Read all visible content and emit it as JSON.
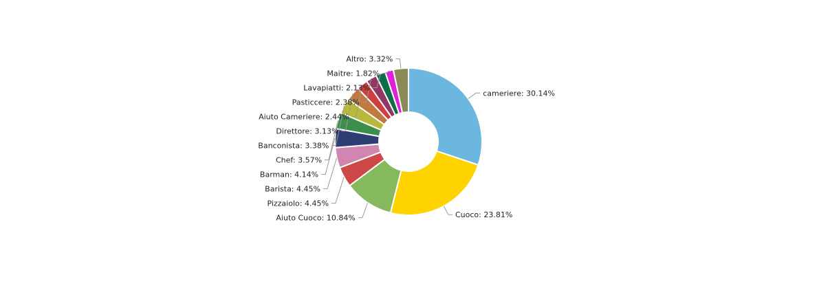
{
  "chart_data": {
    "type": "pie",
    "variant": "donut",
    "label_format": "{name}: {pct}%",
    "slices": [
      {
        "name": "cameriere",
        "value": 30.14,
        "pct_label": "30.14",
        "color": "#6bb7df"
      },
      {
        "name": "Cuoco",
        "value": 23.81,
        "pct_label": "23.81",
        "color": "#fed300"
      },
      {
        "name": "Aiuto Cuoco",
        "value": 10.84,
        "pct_label": "10.84",
        "color": "#86b85d"
      },
      {
        "name": "Pizzaiolo",
        "value": 4.45,
        "pct_label": "4.45",
        "color": "#cd4849"
      },
      {
        "name": "Barista",
        "value": 4.45,
        "pct_label": "4.45",
        "color": "#d186b1"
      },
      {
        "name": "Barman",
        "value": 4.14,
        "pct_label": "4.14",
        "color": "#2e3e72"
      },
      {
        "name": "Chef",
        "value": 3.57,
        "pct_label": "3.57",
        "color": "#3d8e4c"
      },
      {
        "name": "Banconista",
        "value": 3.38,
        "pct_label": "3.38",
        "color": "#b8b83a"
      },
      {
        "name": "Direttore",
        "value": 3.13,
        "pct_label": "3.13",
        "color": "#c07a40"
      },
      {
        "name": "Aiuto Cameriere",
        "value": 2.44,
        "pct_label": "2.44",
        "color": "#cf3f3f"
      },
      {
        "name": "Pasticcere",
        "value": 2.38,
        "pct_label": "2.38",
        "color": "#913665"
      },
      {
        "name": "Lavapiatti",
        "value": 2.13,
        "pct_label": "2.13",
        "color": "#0e6e4a"
      },
      {
        "name": "Maitre",
        "value": 1.82,
        "pct_label": "1.82",
        "color": "#e020d8"
      },
      {
        "name": "Altro",
        "value": 3.32,
        "pct_label": "3.32",
        "color": "#8a8a58"
      }
    ]
  }
}
